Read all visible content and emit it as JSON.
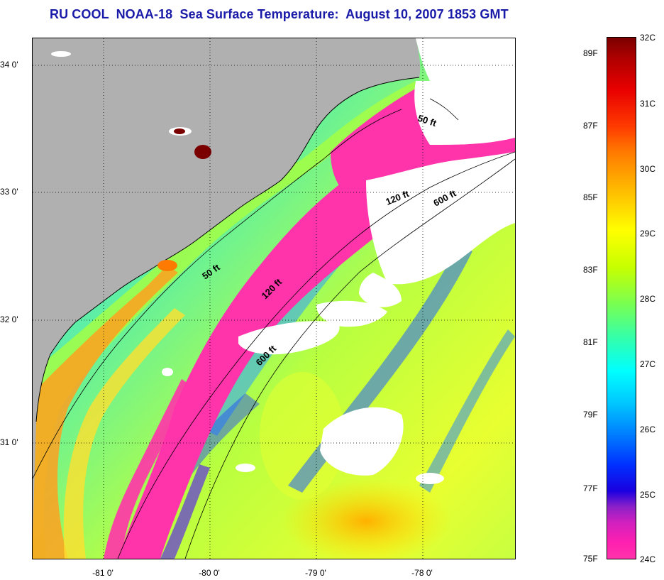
{
  "title": "RU COOL  NOAA-18  Sea Surface Temperature:  August 10, 2007 1853 GMT",
  "map": {
    "latitude_labels": [
      "34 0'",
      "33 0'",
      "32 0'",
      "31 0'"
    ],
    "longitude_labels": [
      "-81 0'",
      "-80 0'",
      "-79 0'",
      "-78 0'"
    ],
    "contour_labels": [
      "50 ft",
      "120 ft",
      "600 ft",
      "50 ft",
      "120 ft",
      "600 ft"
    ],
    "colors": {
      "land": "#b0b0b0",
      "cloud": "#ffffff",
      "warm": "#ff9a20",
      "cool": "#ff33aa"
    }
  },
  "colorbar": {
    "fahrenheit_labels": [
      "89F",
      "87F",
      "85F",
      "83F",
      "81F",
      "79F",
      "77F",
      "75F"
    ],
    "celsius_labels": [
      "32C",
      "31C",
      "30C",
      "29C",
      "28C",
      "27C",
      "26C",
      "25C",
      "24C"
    ]
  }
}
